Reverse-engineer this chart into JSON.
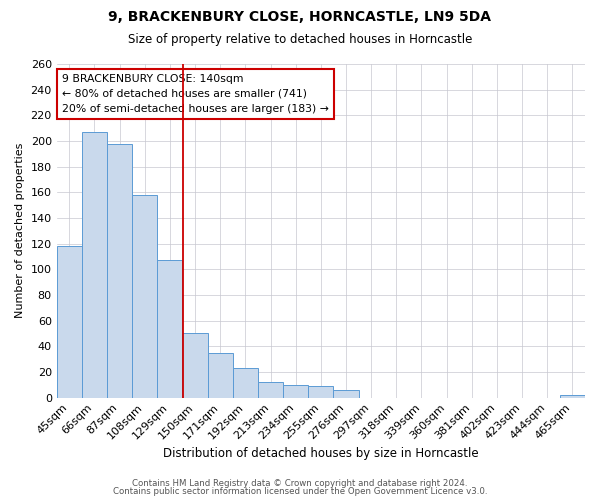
{
  "title": "9, BRACKENBURY CLOSE, HORNCASTLE, LN9 5DA",
  "subtitle": "Size of property relative to detached houses in Horncastle",
  "xlabel": "Distribution of detached houses by size in Horncastle",
  "ylabel": "Number of detached properties",
  "bar_labels": [
    "45sqm",
    "66sqm",
    "87sqm",
    "108sqm",
    "129sqm",
    "150sqm",
    "171sqm",
    "192sqm",
    "213sqm",
    "234sqm",
    "255sqm",
    "276sqm",
    "297sqm",
    "318sqm",
    "339sqm",
    "360sqm",
    "381sqm",
    "402sqm",
    "423sqm",
    "444sqm",
    "465sqm"
  ],
  "bar_heights": [
    118,
    207,
    198,
    158,
    107,
    50,
    35,
    23,
    12,
    10,
    9,
    6,
    0,
    0,
    0,
    0,
    0,
    0,
    0,
    0,
    2
  ],
  "bar_color": "#c9d9ec",
  "bar_edge_color": "#5b9bd5",
  "annotation_lines": [
    "9 BRACKENBURY CLOSE: 140sqm",
    "← 80% of detached houses are smaller (741)",
    "20% of semi-detached houses are larger (183) →"
  ],
  "annotation_box_color": "#ffffff",
  "annotation_border_color": "#cc0000",
  "vline_color": "#cc0000",
  "ylim": [
    0,
    260
  ],
  "yticks": [
    0,
    20,
    40,
    60,
    80,
    100,
    120,
    140,
    160,
    180,
    200,
    220,
    240,
    260
  ],
  "grid_color": "#c8c8d0",
  "background_color": "#ffffff",
  "footer_line1": "Contains HM Land Registry data © Crown copyright and database right 2024.",
  "footer_line2": "Contains public sector information licensed under the Open Government Licence v3.0.",
  "vline_x": 4.52
}
